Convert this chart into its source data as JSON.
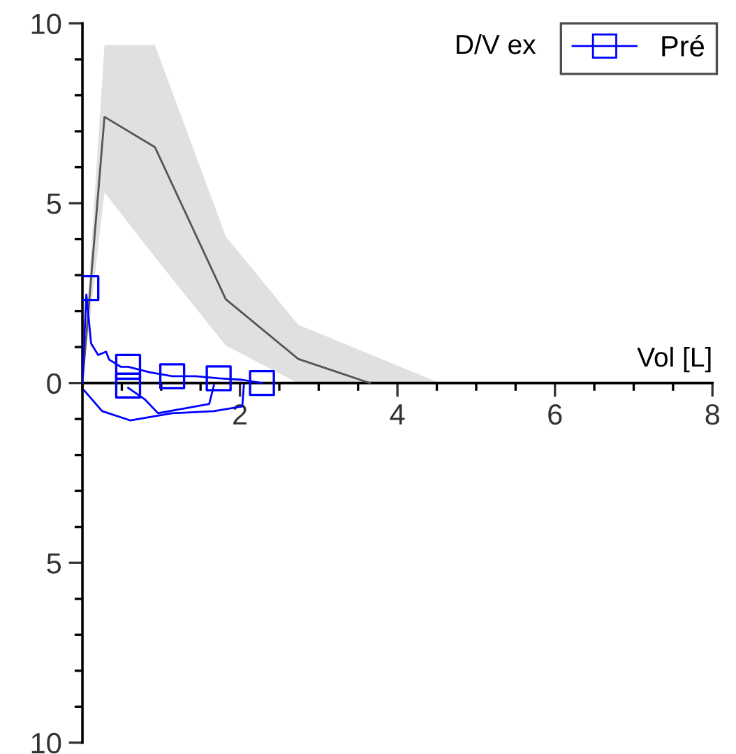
{
  "chart_data": {
    "type": "line",
    "xlabel": "Vol [L]",
    "ylabel": "D/V ex",
    "xlim": [
      0,
      8
    ],
    "ylim": [
      -10,
      10
    ],
    "xticks": [
      2,
      4,
      6,
      8
    ],
    "yticks": [
      {
        "value": -10,
        "label": "10"
      },
      {
        "value": -5,
        "label": "5"
      },
      0,
      5,
      10
    ],
    "grid": false,
    "legend": "top right",
    "series": [
      {
        "color": "#555555",
        "x": [
          0,
          0.28,
          0.92,
          1.82,
          2.74,
          3.65,
          4.54
        ],
        "values": [
          0,
          7.4,
          6.56,
          2.33,
          0.67,
          0,
          null
        ],
        "lower": [
          0,
          5.3,
          3.5,
          1.04,
          0,
          0,
          0
        ],
        "upper": [
          0,
          9.4,
          9.4,
          4.08,
          1.62,
          0.8,
          0
        ]
      },
      {
        "type": "line",
        "name": "Pré",
        "color": "#0000ff",
        "marker": "none",
        "x": [
          0,
          0.03,
          0.05,
          0.11,
          0.2,
          0.3,
          0.34,
          0.49,
          0.58,
          0.85,
          1.14,
          1.44,
          1.73,
          2.03,
          2.28
        ],
        "values": [
          0,
          1.5,
          2.46,
          1.1,
          0.78,
          0.87,
          0.65,
          0.45,
          0.45,
          0.3,
          0.19,
          0.19,
          0.13,
          0.09,
          0
        ]
      },
      {
        "type": "line",
        "color": "#0000ff",
        "marker": "none",
        "x": [
          2.05,
          2.03,
          1.67,
          1.14,
          0.61,
          0.25,
          0.02
        ],
        "values": [
          -0.05,
          -0.65,
          -0.78,
          -0.84,
          -1.04,
          -0.78,
          -0.2
        ]
      },
      {
        "type": "line",
        "color": "#0000ff",
        "marker": "none",
        "x": [
          1.67,
          1.61,
          0.96,
          0.79,
          0.58
        ],
        "values": [
          -0.06,
          -0.58,
          -0.84,
          -0.45,
          -0.13
        ]
      },
      {
        "type": "scatter",
        "color": "#0000ff",
        "marker": "square",
        "x": [
          0.05,
          0.58,
          0.58,
          1.14,
          1.73,
          2.28
        ],
        "values": [
          2.64,
          0.45,
          -0.07,
          0.19,
          0.13,
          0
        ]
      }
    ]
  }
}
